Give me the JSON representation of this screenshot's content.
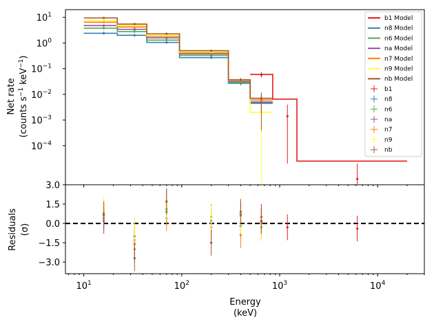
{
  "chart_data": [
    {
      "type": "line",
      "panel": "spectrum",
      "xscale": "log",
      "yscale": "log",
      "xlim": [
        6.5,
        30000
      ],
      "ylim": [
        3e-06,
        20
      ],
      "ylabel_line1": "Net rate",
      "ylabel_line2": "(counts s",
      "ylabel_unit_exp1": "−1",
      "ylabel_unit_mid": " keV",
      "ylabel_unit_exp2": "−1",
      "ylabel_close": ")",
      "xticks": [
        10,
        100,
        1000,
        10000
      ],
      "xtick_labels": [
        {
          "base": "10",
          "exp": "1"
        },
        {
          "base": "10",
          "exp": "2"
        },
        {
          "base": "10",
          "exp": "3"
        },
        {
          "base": "10",
          "exp": "4"
        }
      ],
      "yticks": [
        10,
        1,
        0.1,
        0.01,
        0.001,
        0.0001
      ],
      "ytick_labels": [
        {
          "base": "10",
          "exp": "1"
        },
        {
          "base": "10",
          "exp": "0"
        },
        {
          "base": "10",
          "exp": "−1"
        },
        {
          "base": "10",
          "exp": "−2"
        },
        {
          "base": "10",
          "exp": "−3"
        },
        {
          "base": "10",
          "exp": "−4"
        }
      ],
      "legend_position": "upper right",
      "model_bins": [
        10,
        22,
        44,
        95,
        300,
        500,
        850,
        1500,
        20000
      ],
      "series": [
        {
          "name": "b1 Model",
          "color": "#e41a1c",
          "model": [
            null,
            null,
            null,
            null,
            null,
            0.06,
            0.0065,
            2.5e-05
          ],
          "data": [
            [
              650,
              0.058,
              0.045,
              0.075
            ],
            [
              1200,
              0.0014,
              2e-05,
              0.004
            ],
            [
              6200,
              5e-06,
              3e-06,
              2e-05
            ]
          ]
        },
        {
          "name": "n8 Model",
          "color": "#377eb8",
          "model": [
            2.4,
            2.0,
            1.05,
            0.27,
            0.027,
            0.0045,
            null,
            null
          ],
          "data": [
            [
              16,
              2.4,
              2.1,
              2.8
            ],
            [
              33,
              2.0,
              1.8,
              2.3
            ],
            [
              70,
              1.05,
              0.95,
              1.2
            ],
            [
              200,
              0.27,
              0.24,
              0.31
            ],
            [
              400,
              0.027,
              0.022,
              0.033
            ],
            [
              650,
              0.0045,
              0.002,
              0.008
            ]
          ]
        },
        {
          "name": "n6 Model",
          "color": "#4daf4a",
          "model": [
            3.8,
            2.8,
            1.3,
            0.33,
            0.03,
            0.005,
            null,
            null
          ],
          "data": [
            [
              16,
              3.8,
              3.4,
              4.2
            ],
            [
              33,
              2.8,
              2.5,
              3.1
            ],
            [
              70,
              1.3,
              1.2,
              1.45
            ],
            [
              200,
              0.33,
              0.3,
              0.37
            ],
            [
              400,
              0.03,
              0.025,
              0.036
            ],
            [
              650,
              0.005,
              0.002,
              0.009
            ]
          ]
        },
        {
          "name": "na Model",
          "color": "#984ea3",
          "model": [
            4.8,
            3.4,
            1.6,
            0.38,
            0.033,
            0.005,
            null,
            null
          ],
          "data": [
            [
              16,
              4.8,
              4.3,
              5.3
            ],
            [
              33,
              3.4,
              3.1,
              3.8
            ],
            [
              70,
              1.6,
              1.45,
              1.75
            ],
            [
              200,
              0.38,
              0.34,
              0.42
            ],
            [
              400,
              0.033,
              0.028,
              0.039
            ],
            [
              650,
              0.005,
              0.002,
              0.009
            ]
          ]
        },
        {
          "name": "n7 Model",
          "color": "#ff7f00",
          "model": [
            6.5,
            4.2,
            1.85,
            0.42,
            0.035,
            0.006,
            null,
            null
          ],
          "data": [
            [
              16,
              6.5,
              5.9,
              7.1
            ],
            [
              33,
              4.2,
              3.8,
              4.6
            ],
            [
              70,
              1.85,
              1.7,
              2.0
            ],
            [
              200,
              0.42,
              0.38,
              0.46
            ],
            [
              400,
              0.035,
              0.03,
              0.041
            ],
            [
              650,
              0.006,
              0.0025,
              0.01
            ]
          ]
        },
        {
          "name": "n9 Model",
          "color": "#ffff33",
          "model": [
            7.6,
            4.8,
            2.0,
            0.45,
            0.036,
            0.002,
            null,
            null
          ],
          "data": [
            [
              16,
              7.6,
              6.9,
              8.3
            ],
            [
              33,
              4.8,
              4.4,
              5.3
            ],
            [
              70,
              2.0,
              1.85,
              2.2
            ],
            [
              200,
              0.45,
              0.41,
              0.5
            ],
            [
              400,
              0.036,
              0.031,
              0.042
            ],
            [
              650,
              0.002,
              3e-06,
              0.006
            ]
          ]
        },
        {
          "name": "nb Model",
          "color": "#a65628",
          "model": [
            9.5,
            5.5,
            2.3,
            0.5,
            0.037,
            0.007,
            null,
            null
          ],
          "data": [
            [
              16,
              9.5,
              8.7,
              10.3
            ],
            [
              33,
              5.5,
              5.0,
              6.0
            ],
            [
              70,
              2.3,
              2.1,
              2.5
            ],
            [
              200,
              0.5,
              0.45,
              0.55
            ],
            [
              400,
              0.037,
              0.032,
              0.043
            ],
            [
              650,
              0.007,
              0.0004,
              0.012
            ]
          ]
        }
      ],
      "data_labels": [
        "b1",
        "n8",
        "n6",
        "na",
        "n7",
        "n9",
        "nb"
      ]
    },
    {
      "type": "scatter",
      "panel": "residuals",
      "xscale": "log",
      "xlim": [
        6.5,
        30000
      ],
      "ylim": [
        -3.9,
        3.0
      ],
      "xlabel_line1": "Energy",
      "xlabel_line2": "(keV)",
      "ylabel_line1": "Residuals",
      "ylabel_line2": "(σ)",
      "yticks": [
        3.0,
        1.5,
        0.0,
        -1.5,
        -3.0
      ],
      "ytick_labels": [
        "3.0",
        "1.5",
        "0.0",
        "−1.5",
        "−3.0"
      ],
      "reference_line": 0,
      "series": [
        {
          "name": "b1",
          "color": "#e41a1c",
          "points": [
            [
              650,
              0.5
            ],
            [
              1200,
              -0.3
            ],
            [
              6200,
              -0.4
            ]
          ]
        },
        {
          "name": "n8",
          "color": "#377eb8",
          "points": [
            [
              16,
              0.4
            ],
            [
              33,
              -1.0
            ],
            [
              70,
              0.9
            ],
            [
              200,
              0.0
            ],
            [
              400,
              -0.2
            ],
            [
              650,
              -0.3
            ]
          ]
        },
        {
          "name": "n6",
          "color": "#4daf4a",
          "points": [
            [
              16,
              0.6
            ],
            [
              33,
              -2.0
            ],
            [
              70,
              1.1
            ],
            [
              200,
              0.5
            ],
            [
              400,
              0.6
            ],
            [
              650,
              0.2
            ]
          ]
        },
        {
          "name": "na",
          "color": "#984ea3",
          "points": [
            [
              16,
              0.2
            ],
            [
              33,
              -1.6
            ],
            [
              70,
              1.7
            ],
            [
              200,
              0.2
            ],
            [
              400,
              0.7
            ],
            [
              650,
              0.1
            ]
          ]
        },
        {
          "name": "n7",
          "color": "#ff7f00",
          "points": [
            [
              16,
              0.8
            ],
            [
              33,
              -1.3
            ],
            [
              70,
              0.4
            ],
            [
              200,
              -0.3
            ],
            [
              400,
              -0.9
            ],
            [
              650,
              0.0
            ]
          ]
        },
        {
          "name": "n9",
          "color": "#ffff33",
          "points": [
            [
              16,
              1.2
            ],
            [
              33,
              -0.4
            ],
            [
              70,
              1.3
            ],
            [
              200,
              0.4
            ],
            [
              400,
              0.2
            ],
            [
              650,
              -0.4
            ]
          ]
        },
        {
          "name": "nb",
          "color": "#a65628",
          "points": [
            [
              16,
              0.7
            ],
            [
              33,
              -2.7
            ],
            [
              70,
              1.7
            ],
            [
              200,
              -1.5
            ],
            [
              400,
              0.9
            ],
            [
              650,
              0.2
            ]
          ]
        }
      ]
    }
  ]
}
